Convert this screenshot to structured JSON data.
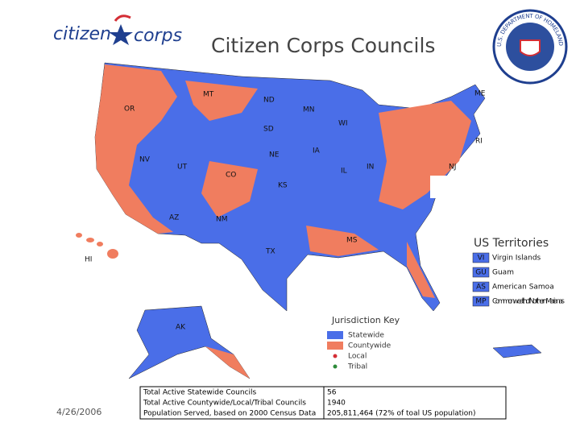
{
  "logo": {
    "left": "citizen",
    "right": "corps"
  },
  "title": "Citizen Corps Councils",
  "seal": "U.S. DEPARTMENT OF HOMELAND SECURITY",
  "state_labels": [
    "MT",
    "ND",
    "MN",
    "OR",
    "SD",
    "WI",
    "NE",
    "IA",
    "NV",
    "UT",
    "CO",
    "KS",
    "IL",
    "IN",
    "AZ",
    "NM",
    "MS",
    "TX",
    "ME",
    "RI",
    "NJ",
    "HI",
    "AK"
  ],
  "territories": {
    "title": "US Territories",
    "items": [
      {
        "code": "VI",
        "name": "Virgin Islands"
      },
      {
        "code": "GU",
        "name": "Guam"
      },
      {
        "code": "AS",
        "name": "American Samoa"
      },
      {
        "code": "MP",
        "name": "Commonwealth of Northern Marianas"
      }
    ]
  },
  "key": {
    "title": "Jurisdiction Key",
    "items": [
      "Statewide",
      "Countywide",
      "Local",
      "Tribal"
    ]
  },
  "table": {
    "rows": [
      [
        "Total Active Statewide Councils",
        "56"
      ],
      [
        "Total Active Countywide/Local/Tribal Councils",
        "1940"
      ],
      [
        "Population Served, based on 2000 Census Data",
        "205,811,464 (72% of toal US population)"
      ]
    ]
  },
  "date": "4/26/2006"
}
